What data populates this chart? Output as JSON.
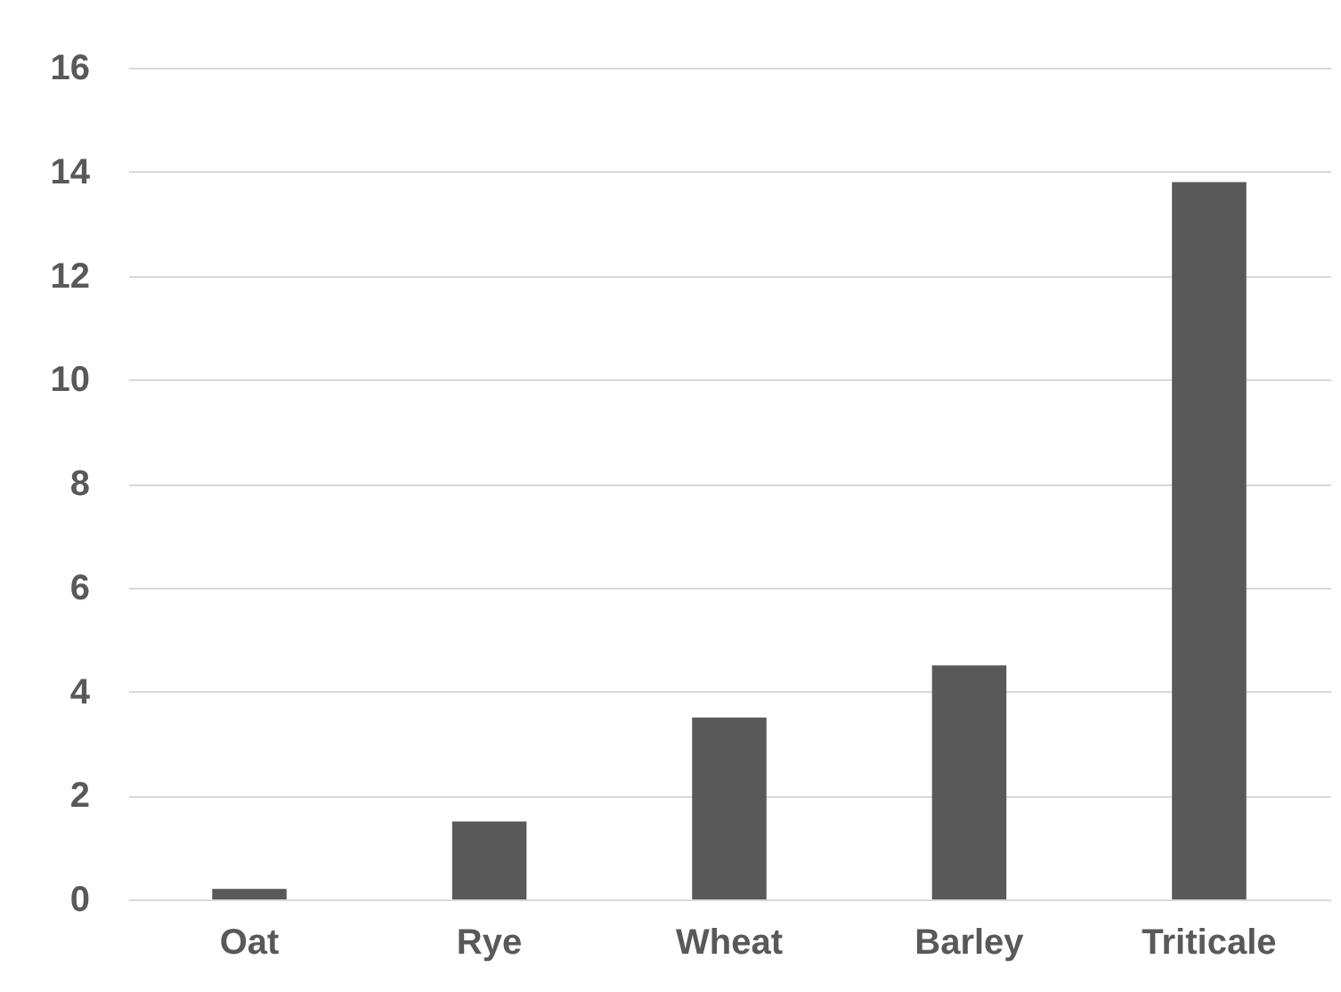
{
  "chart_data": {
    "type": "bar",
    "categories": [
      "Oat",
      "Rye",
      "Wheat",
      "Barley",
      "Triticale"
    ],
    "values": [
      0.2,
      1.5,
      3.5,
      4.5,
      13.8
    ],
    "color": "#595959",
    "ylim": [
      0,
      16
    ],
    "yticks": [
      0,
      2,
      4,
      6,
      8,
      10,
      12,
      14,
      16
    ],
    "grid": "y"
  }
}
